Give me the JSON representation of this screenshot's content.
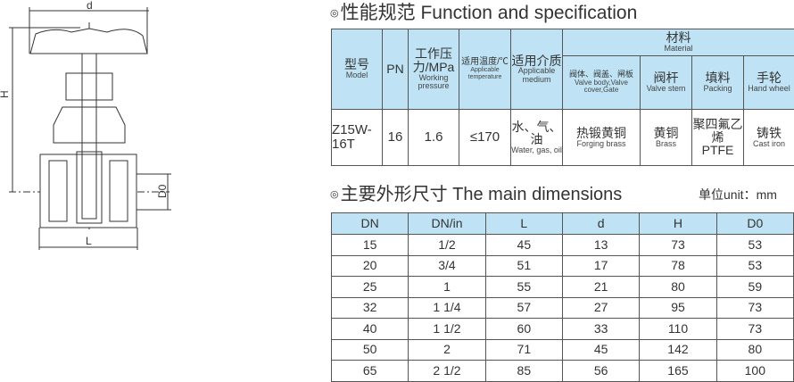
{
  "spec": {
    "title": "性能规范 Function and specification",
    "headers": {
      "model_zh": "型号",
      "model_en": "Model",
      "pn": "PN",
      "pressure_zh": "工作压力/MPa",
      "pressure_en": "Working pressure",
      "temp_zh": "适用温度/℃",
      "temp_en": "Applicable temperature",
      "medium_zh": "适用介质",
      "medium_en": "Applicable medium",
      "material_zh": "材料",
      "material_en": "Material",
      "body_zh": "阀体、阀盖、闸板",
      "body_en": "Valve body,Valve cover,Gate",
      "stem_zh": "阀杆",
      "stem_en": "Valve stem",
      "packing_zh": "填料",
      "packing_en": "Packing",
      "wheel_zh": "手轮",
      "wheel_en": "Hand wheel"
    },
    "row": {
      "model": "Z15W-16T",
      "pn": "16",
      "pressure": "1.6",
      "temp": "≤170",
      "medium_zh": "水、气、油",
      "medium_en": "Water, gas, oil",
      "body_zh": "热锻黄铜",
      "body_en": "Forging brass",
      "stem_zh": "黄铜",
      "stem_en": "Brass",
      "packing_zh": "聚四氟乙烯",
      "packing_en": "PTFE",
      "wheel_zh": "铸铁",
      "wheel_en": "Cast iron"
    }
  },
  "dims": {
    "title": "主要外形尺寸 The main dimensions",
    "unit": "单位unit：mm",
    "columns": [
      "DN",
      "DN/in",
      "L",
      "d",
      "H",
      "D0"
    ],
    "rows": [
      [
        "15",
        "1/2",
        "45",
        "13",
        "73",
        "53"
      ],
      [
        "20",
        "3/4",
        "51",
        "17",
        "78",
        "53"
      ],
      [
        "25",
        "1",
        "55",
        "21",
        "80",
        "59"
      ],
      [
        "32",
        "1 1/4",
        "57",
        "27",
        "95",
        "73"
      ],
      [
        "40",
        "1 1/2",
        "60",
        "33",
        "110",
        "73"
      ],
      [
        "50",
        "2",
        "71",
        "45",
        "142",
        "80"
      ],
      [
        "65",
        "2 1/2",
        "85",
        "56",
        "165",
        "100"
      ]
    ]
  },
  "drawing": {
    "labels": {
      "d": "d",
      "H": "H",
      "D0": "D0",
      "L": "L"
    }
  },
  "colors": {
    "header_bg": "#bfe3f5",
    "border": "#555555"
  }
}
